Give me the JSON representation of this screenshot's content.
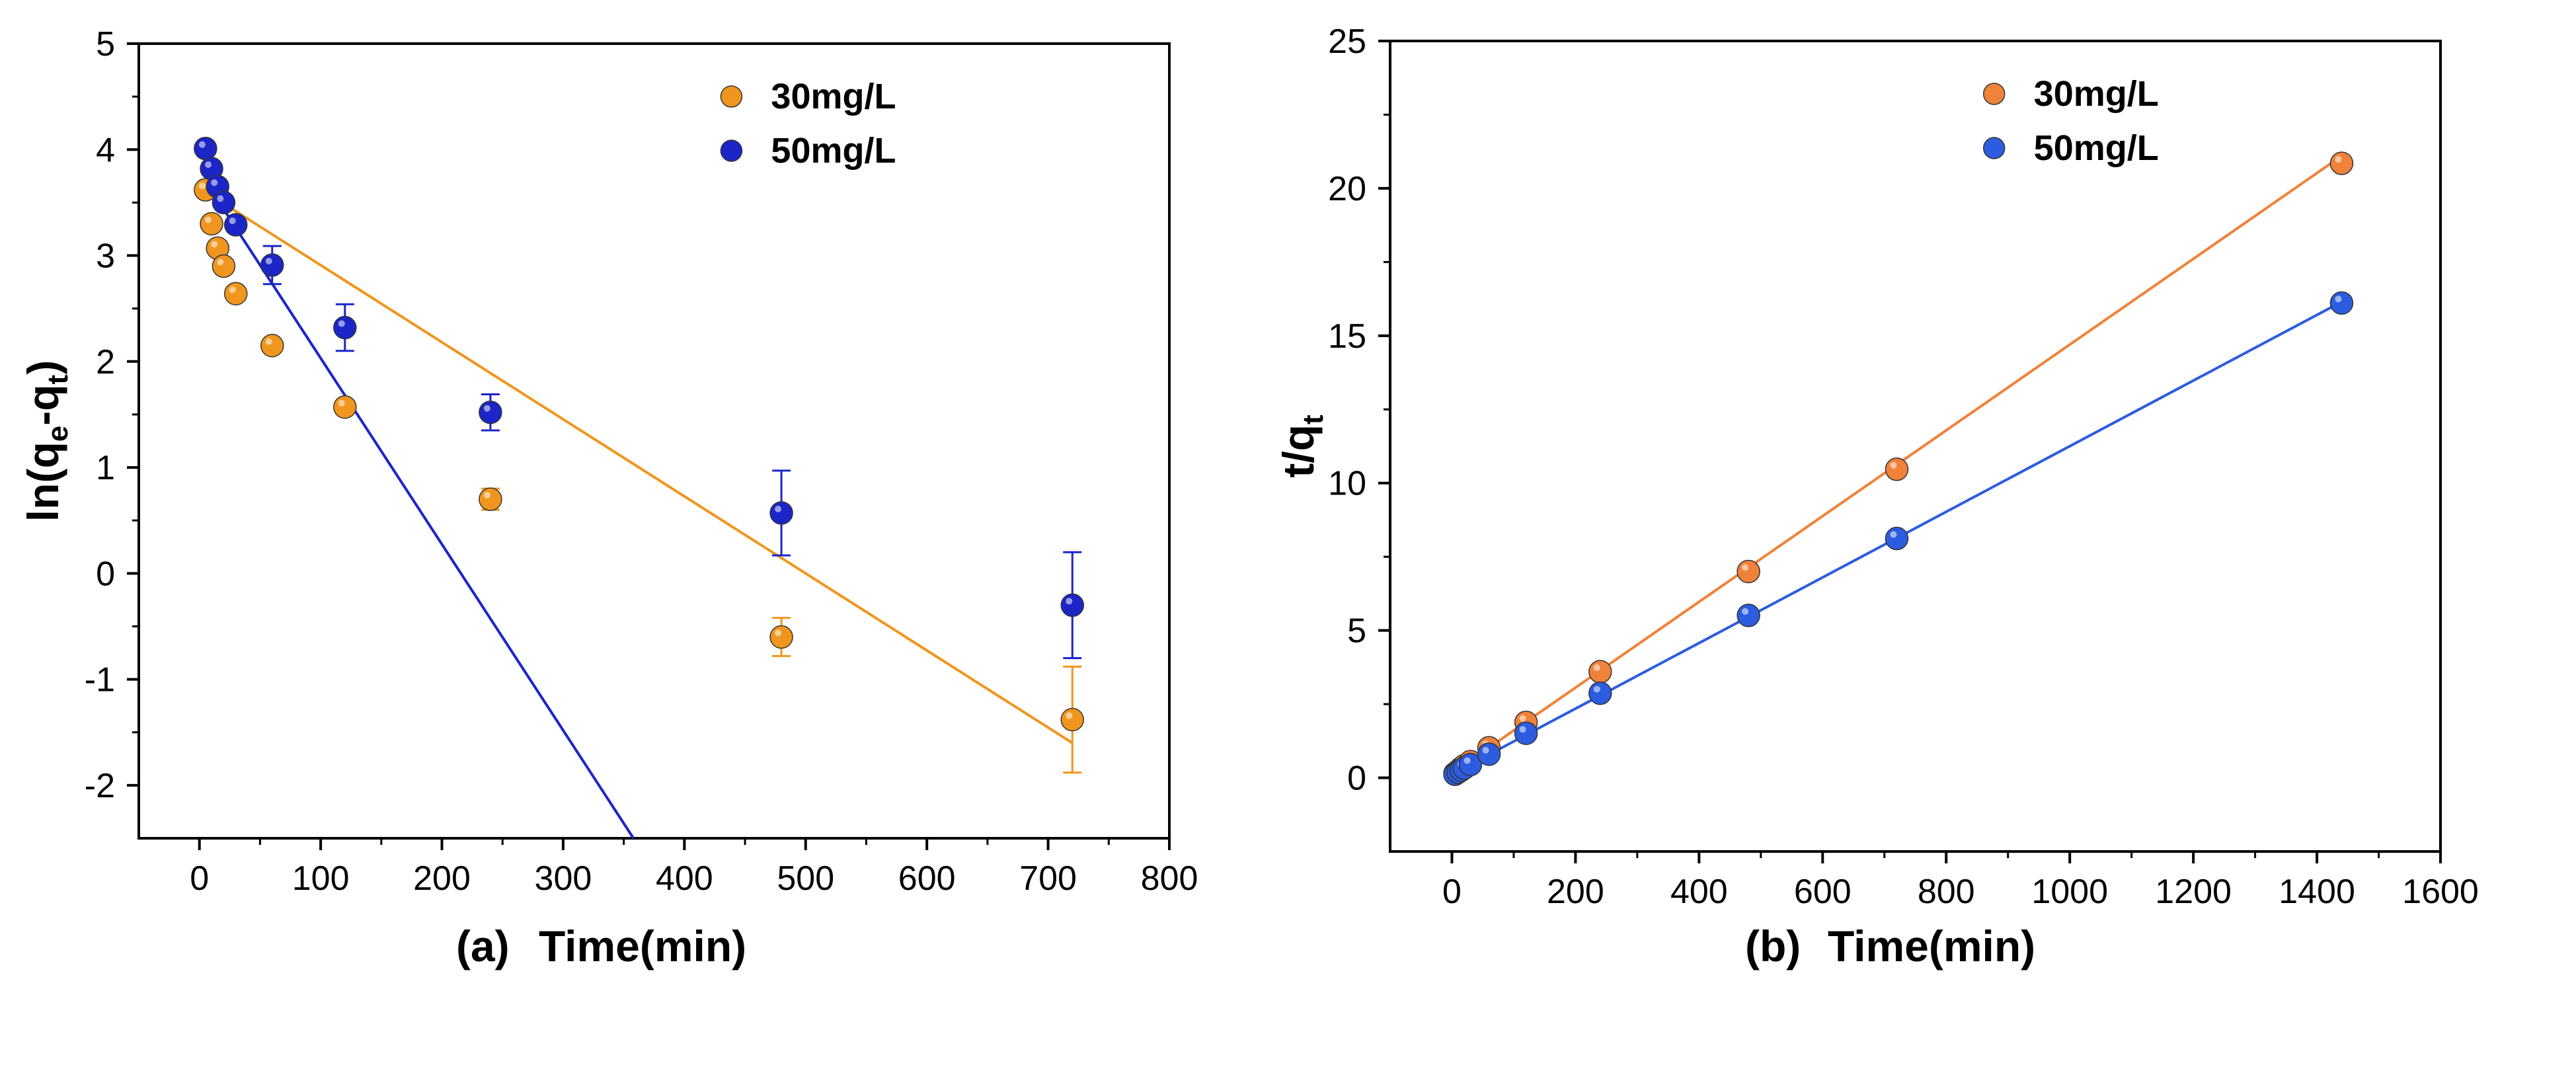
{
  "chart_data": [
    {
      "type": "scatter",
      "panel_label": "(a)",
      "xlabel": "Time(min)",
      "ylabel_parts": {
        "base": "ln(q",
        "sub1": "e",
        "mid": "-q",
        "sub2": "t",
        "end": ")"
      },
      "xlim": [
        -50,
        800
      ],
      "ylim": [
        -2.5,
        5
      ],
      "xticks": [
        0,
        100,
        200,
        300,
        400,
        500,
        600,
        700,
        800
      ],
      "yticks": [
        -2,
        -1,
        0,
        1,
        2,
        3,
        4,
        5
      ],
      "legend_position": "top-right",
      "series": [
        {
          "name": "30mg/L",
          "color": "#f0961e",
          "x": [
            5,
            10,
            15,
            20,
            30,
            60,
            120,
            240,
            480,
            720
          ],
          "y": [
            3.62,
            3.3,
            3.07,
            2.9,
            2.64,
            2.15,
            1.57,
            0.7,
            -0.6,
            -1.38
          ],
          "err": [
            0,
            0,
            0,
            0,
            0,
            0,
            0,
            0.1,
            0.18,
            0.5
          ],
          "fit": {
            "x": [
              5,
              720
            ],
            "y": [
              3.6,
              -1.6
            ]
          }
        },
        {
          "name": "50mg/L",
          "color": "#1c25c8",
          "x": [
            5,
            10,
            15,
            20,
            30,
            60,
            120,
            240,
            480,
            720
          ],
          "y": [
            4.01,
            3.82,
            3.65,
            3.5,
            3.29,
            2.91,
            2.32,
            1.52,
            0.57,
            -0.3
          ],
          "err": [
            0.06,
            0,
            0,
            0,
            0,
            0.18,
            0.22,
            0.17,
            0.4,
            0.5
          ],
          "fit": {
            "x": [
              5,
              358
            ],
            "y": [
              3.7,
              -2.5
            ]
          }
        }
      ]
    },
    {
      "type": "scatter",
      "panel_label": "(b)",
      "xlabel": "Time(min)",
      "ylabel_parts": {
        "base": "t/q",
        "sub1": "t"
      },
      "xlim": [
        -100,
        1600
      ],
      "ylim": [
        -2.5,
        25
      ],
      "xticks": [
        0,
        200,
        400,
        600,
        800,
        1000,
        1200,
        1400,
        1600
      ],
      "yticks": [
        0,
        5,
        10,
        15,
        20,
        25
      ],
      "legend_position": "top-right",
      "series": [
        {
          "name": "30mg/L",
          "color": "#f0823a",
          "x": [
            5,
            10,
            15,
            20,
            30,
            60,
            120,
            240,
            480,
            720,
            1440
          ],
          "y": [
            0.15,
            0.23,
            0.33,
            0.41,
            0.55,
            1.02,
            1.88,
            3.6,
            7.0,
            10.47,
            20.85
          ],
          "fit": {
            "x": [
              0,
              1440
            ],
            "y": [
              0.15,
              21.1
            ]
          }
        },
        {
          "name": "50mg/L",
          "color": "#2c5ce0",
          "x": [
            5,
            10,
            15,
            20,
            30,
            60,
            120,
            240,
            480,
            720,
            1440
          ],
          "y": [
            0.12,
            0.19,
            0.26,
            0.33,
            0.45,
            0.8,
            1.51,
            2.87,
            5.51,
            8.12,
            16.11
          ],
          "fit": {
            "x": [
              0,
              1440
            ],
            "y": [
              0.12,
              16.15
            ]
          }
        }
      ]
    }
  ]
}
